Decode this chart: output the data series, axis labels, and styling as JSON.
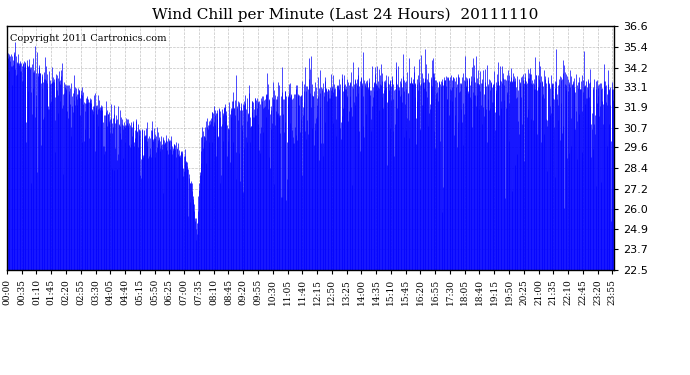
{
  "title": "Wind Chill per Minute (Last 24 Hours)  20111110",
  "copyright": "Copyright 2011 Cartronics.com",
  "yticks": [
    22.5,
    23.7,
    24.9,
    26.0,
    27.2,
    28.4,
    29.6,
    30.7,
    31.9,
    33.1,
    34.2,
    35.4,
    36.6
  ],
  "ylim": [
    22.5,
    36.6
  ],
  "xtick_labels": [
    "00:00",
    "00:35",
    "01:10",
    "01:45",
    "02:20",
    "02:55",
    "03:30",
    "04:05",
    "04:40",
    "05:15",
    "05:50",
    "06:25",
    "07:00",
    "07:35",
    "08:10",
    "08:45",
    "09:20",
    "09:55",
    "10:30",
    "11:05",
    "11:40",
    "12:15",
    "12:50",
    "13:25",
    "14:00",
    "14:35",
    "15:10",
    "15:45",
    "16:20",
    "16:55",
    "17:30",
    "18:05",
    "18:40",
    "19:15",
    "19:50",
    "20:25",
    "21:00",
    "21:35",
    "22:10",
    "22:45",
    "23:20",
    "23:55"
  ],
  "line_color": "#0000FF",
  "background_color": "#FFFFFF",
  "grid_color": "#AAAAAA",
  "title_fontsize": 11,
  "copyright_fontsize": 7,
  "base_knots_x": [
    0,
    0.5,
    1,
    1.5,
    2,
    2.5,
    3,
    3.5,
    4,
    4.5,
    5,
    5.5,
    6,
    6.5,
    7,
    7.3,
    7.5,
    7.7,
    8.0,
    8.3,
    8.6,
    9,
    9.5,
    10,
    11,
    12,
    13,
    14,
    15,
    16,
    17,
    18,
    19,
    20,
    21,
    22,
    23,
    24
  ],
  "base_knots_y": [
    34.8,
    34.5,
    34.2,
    33.8,
    33.4,
    33.0,
    32.5,
    32.0,
    31.5,
    31.2,
    30.8,
    30.5,
    30.2,
    29.8,
    29.2,
    27.5,
    24.5,
    30.2,
    31.2,
    31.5,
    31.8,
    32.0,
    32.2,
    32.3,
    32.6,
    32.9,
    33.1,
    33.3,
    33.2,
    33.4,
    33.5,
    33.5,
    33.4,
    33.5,
    33.5,
    33.3,
    33.2,
    33.0
  ]
}
